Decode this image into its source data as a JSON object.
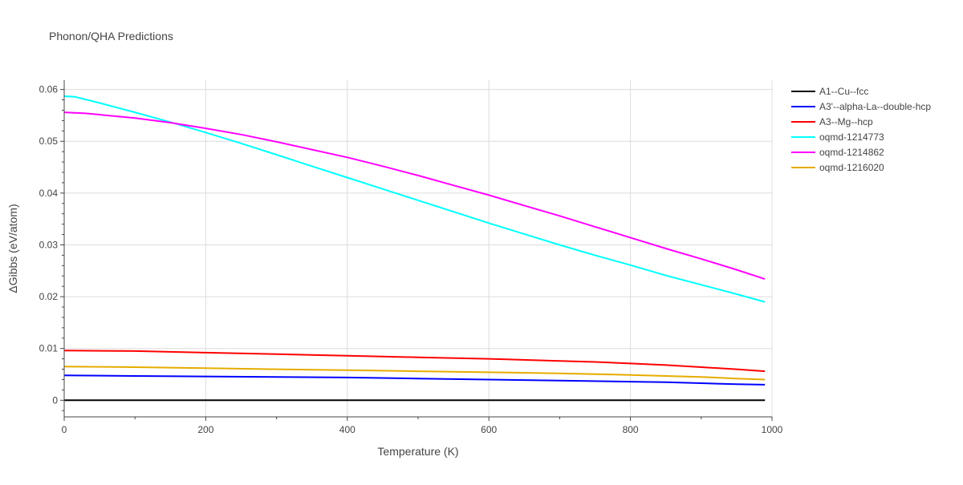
{
  "chart_data": {
    "type": "line",
    "title": "Phonon/QHA Predictions",
    "xlabel": "Temperature (K)",
    "ylabel": "ΔGibbs (eV/atom)",
    "xlim": [
      0,
      1000
    ],
    "ylim": [
      -0.0032,
      0.0618
    ],
    "x_ticks": [
      0,
      200,
      400,
      600,
      800,
      1000
    ],
    "x_tick_labels": [
      "0",
      "200",
      "400",
      "600",
      "800",
      "1000"
    ],
    "y_ticks": [
      0,
      0.01,
      0.02,
      0.03,
      0.04,
      0.05,
      0.06
    ],
    "y_tick_labels": [
      "0",
      "0.01",
      "0.02",
      "0.03",
      "0.04",
      "0.05",
      "0.06"
    ],
    "grid": true,
    "legend_position": "top-right, outside plot",
    "series": [
      {
        "name": "A1--Cu--fcc",
        "color": "#000000",
        "x": [
          0,
          990
        ],
        "y": [
          0,
          0
        ]
      },
      {
        "name": "A3'--alpha-La--double-hcp",
        "color": "#0000ff",
        "x": [
          0,
          100,
          200,
          300,
          400,
          500,
          600,
          700,
          800,
          850,
          900,
          950,
          990
        ],
        "y": [
          0.0048,
          0.0047,
          0.0046,
          0.0045,
          0.0044,
          0.0042,
          0.004,
          0.0038,
          0.0036,
          0.0035,
          0.0033,
          0.0031,
          0.003
        ]
      },
      {
        "name": "A3--Mg--hcp",
        "color": "#ff0000",
        "x": [
          0,
          100,
          200,
          300,
          400,
          500,
          600,
          700,
          750,
          800,
          850,
          900,
          950,
          990
        ],
        "y": [
          0.0096,
          0.0095,
          0.0092,
          0.0089,
          0.0086,
          0.0083,
          0.008,
          0.0076,
          0.0074,
          0.0071,
          0.0068,
          0.0064,
          0.006,
          0.0056
        ]
      },
      {
        "name": "oqmd-1214773",
        "color": "#00ffff",
        "x": [
          0,
          15,
          50,
          100,
          150,
          200,
          250,
          300,
          350,
          400,
          450,
          500,
          550,
          600,
          650,
          700,
          750,
          800,
          850,
          900,
          950,
          990
        ],
        "y": [
          0.0587,
          0.0586,
          0.0574,
          0.0556,
          0.0537,
          0.0517,
          0.0496,
          0.0474,
          0.0452,
          0.043,
          0.0408,
          0.0386,
          0.0364,
          0.0342,
          0.0321,
          0.03,
          0.028,
          0.0261,
          0.0241,
          0.0223,
          0.0205,
          0.019
        ]
      },
      {
        "name": "oqmd-1214862",
        "color": "#ff00ff",
        "x": [
          0,
          30,
          100,
          150,
          200,
          250,
          300,
          350,
          400,
          450,
          500,
          550,
          600,
          650,
          700,
          750,
          800,
          850,
          900,
          950,
          990
        ],
        "y": [
          0.0556,
          0.0554,
          0.0545,
          0.0536,
          0.0525,
          0.0513,
          0.0499,
          0.0484,
          0.0469,
          0.0452,
          0.0434,
          0.0415,
          0.0396,
          0.0376,
          0.0356,
          0.0335,
          0.0314,
          0.0293,
          0.0273,
          0.0252,
          0.0234
        ]
      },
      {
        "name": "oqmd-1216020",
        "color": "#e6ac00",
        "x": [
          0,
          100,
          200,
          300,
          400,
          500,
          600,
          700,
          800,
          850,
          900,
          950,
          990
        ],
        "y": [
          0.0065,
          0.0064,
          0.0062,
          0.006,
          0.0058,
          0.0056,
          0.0054,
          0.0052,
          0.0049,
          0.0047,
          0.0045,
          0.0042,
          0.004
        ]
      }
    ]
  }
}
